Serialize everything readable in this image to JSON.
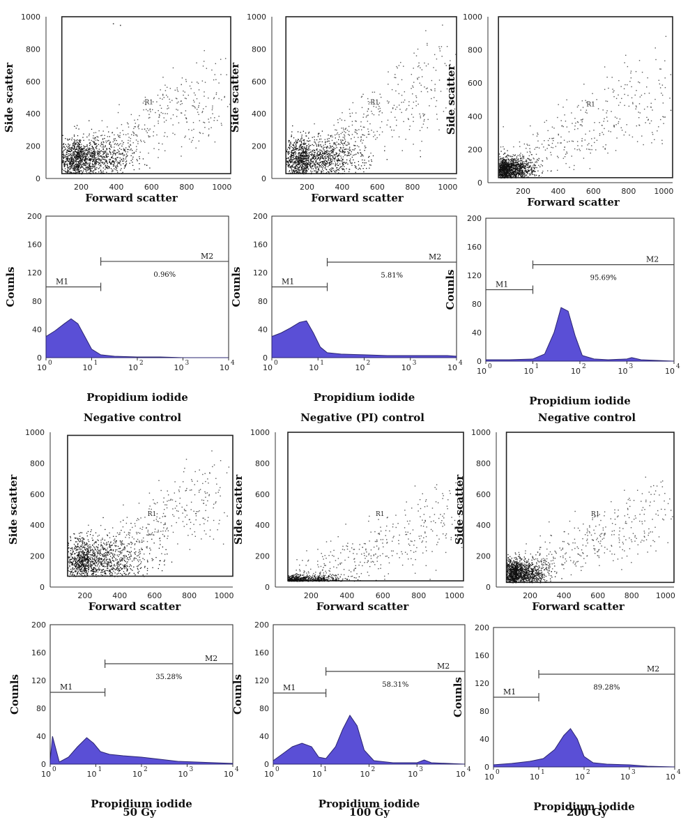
{
  "colors": {
    "histogram_fill": "#5a4fd6",
    "histogram_edge": "#2a2470",
    "dots": "#111111",
    "frame": "#222222",
    "gate": "#444444"
  },
  "conditions": [
    {
      "caption": "Negative control"
    },
    {
      "caption": "Negative (PI) control"
    },
    {
      "caption": "Negative control"
    },
    {
      "caption": "50 Gy"
    },
    {
      "caption": "100 Gy"
    },
    {
      "caption": "200 Gy"
    }
  ],
  "chart_data": [
    {
      "id": "scatter-1",
      "type": "scatter",
      "xlabel": "Forward scatter",
      "ylabel": "Side scatter",
      "xlim": [
        0,
        1050
      ],
      "ylim": [
        0,
        1000
      ],
      "xticks": [
        "200",
        "400",
        "600",
        "800",
        "1000"
      ],
      "yticks": [
        "0",
        "200",
        "400",
        "600",
        "800",
        "1000"
      ],
      "gate_label": "R1",
      "gate": {
        "x": [
          90,
          1050
        ],
        "y": [
          30,
          1000
        ]
      },
      "density": {
        "center": [
          200,
          120
        ],
        "spread": [
          140,
          90
        ],
        "tail_to": [
          1000,
          600
        ],
        "extra": [
          [
            380,
            960
          ],
          [
            420,
            950
          ]
        ]
      }
    },
    {
      "id": "scatter-2",
      "type": "scatter",
      "xlabel": "Forward scatter",
      "ylabel": "Side scatter",
      "xlim": [
        0,
        1050
      ],
      "ylim": [
        0,
        1000
      ],
      "xticks": [
        "200",
        "400",
        "600",
        "800",
        "1000"
      ],
      "yticks": [
        "0",
        "200",
        "400",
        "600",
        "800",
        "1000"
      ],
      "gate_label": "R1",
      "gate": {
        "x": [
          80,
          1050
        ],
        "y": [
          30,
          1000
        ]
      },
      "density": {
        "center": [
          200,
          120
        ],
        "spread": [
          150,
          90
        ],
        "tail_to": [
          1000,
          700
        ],
        "extra": []
      }
    },
    {
      "id": "scatter-3",
      "type": "scatter",
      "xlabel": "Forward scatter",
      "ylabel": "Side scatter",
      "xlim": [
        0,
        1050
      ],
      "ylim": [
        0,
        1000
      ],
      "xticks": [
        "200",
        "400",
        "600",
        "800",
        "1000"
      ],
      "yticks": [
        "0",
        "200",
        "400",
        "600",
        "800",
        "1000"
      ],
      "gate_label": "R1",
      "gate": {
        "x": [
          60,
          1050
        ],
        "y": [
          30,
          1000
        ]
      },
      "density": {
        "center": [
          110,
          80
        ],
        "spread": [
          70,
          50
        ],
        "tail_to": [
          1000,
          650
        ],
        "extra": []
      }
    },
    {
      "id": "hist-1",
      "type": "area",
      "xlabel": "Propidium iodide",
      "ylabel": "Counls",
      "xscale": "log",
      "xlim": [
        0,
        4
      ],
      "ylim": [
        0,
        200
      ],
      "yticks": [
        "0",
        "40",
        "80",
        "120",
        "160",
        "200"
      ],
      "markers": [
        {
          "label": "M1",
          "from": 0,
          "to": 1.2,
          "y": 100
        },
        {
          "label": "M2",
          "from": 1.2,
          "to": 4,
          "y": 136,
          "percent": "0.96%"
        }
      ],
      "x": [
        0,
        0.2,
        0.4,
        0.55,
        0.7,
        0.85,
        1.0,
        1.2,
        1.5,
        2,
        2.5,
        3,
        3.5,
        4
      ],
      "y": [
        30,
        38,
        48,
        55,
        48,
        30,
        12,
        4,
        2,
        1,
        1,
        0,
        0,
        0
      ]
    },
    {
      "id": "hist-2",
      "type": "area",
      "xlabel": "Propidium iodide",
      "ylabel": "Counls",
      "xscale": "log",
      "xlim": [
        0,
        4
      ],
      "ylim": [
        0,
        200
      ],
      "yticks": [
        "0",
        "40",
        "80",
        "120",
        "160",
        "200"
      ],
      "markers": [
        {
          "label": "M1",
          "from": 0,
          "to": 1.2,
          "y": 100
        },
        {
          "label": "M2",
          "from": 1.2,
          "to": 4,
          "y": 135,
          "percent": "5.81%"
        }
      ],
      "x": [
        0,
        0.2,
        0.4,
        0.6,
        0.75,
        0.9,
        1.05,
        1.2,
        1.5,
        2,
        2.5,
        3,
        3.5,
        3.8,
        4
      ],
      "y": [
        30,
        35,
        42,
        50,
        52,
        35,
        15,
        7,
        5,
        4,
        3,
        3,
        3,
        3,
        2
      ]
    },
    {
      "id": "hist-3",
      "type": "area",
      "xlabel": "Propidium iodide",
      "ylabel": "Counls",
      "xscale": "log",
      "xlim": [
        0,
        4
      ],
      "ylim": [
        0,
        200
      ],
      "yticks": [
        "0",
        "40",
        "80",
        "120",
        "160",
        "200"
      ],
      "markers": [
        {
          "label": "M1",
          "from": 0,
          "to": 1.0,
          "y": 100
        },
        {
          "label": "M2",
          "from": 1.0,
          "to": 4,
          "y": 135,
          "percent": "95.69%"
        }
      ],
      "x": [
        0,
        0.5,
        1.0,
        1.25,
        1.45,
        1.6,
        1.75,
        1.9,
        2.05,
        2.3,
        2.6,
        3.0,
        3.1,
        3.3,
        4
      ],
      "y": [
        2,
        2,
        3,
        10,
        40,
        75,
        70,
        35,
        8,
        3,
        2,
        3,
        5,
        2,
        0
      ]
    },
    {
      "id": "scatter-4",
      "type": "scatter",
      "xlabel": "Forward scatter",
      "ylabel": "Side scatter",
      "xlim": [
        0,
        1050
      ],
      "ylim": [
        0,
        1000
      ],
      "xticks": [
        "200",
        "400",
        "600",
        "800",
        "1000"
      ],
      "yticks": [
        "0",
        "200",
        "400",
        "600",
        "800",
        "1000"
      ],
      "gate_label": "R1",
      "gate": {
        "x": [
          100,
          1050
        ],
        "y": [
          70,
          980
        ]
      },
      "density": {
        "center": [
          220,
          160
        ],
        "spread": [
          160,
          110
        ],
        "tail_to": [
          1000,
          700
        ],
        "extra": []
      }
    },
    {
      "id": "scatter-5",
      "type": "scatter",
      "xlabel": "Forward scatter",
      "ylabel": "Side scatter",
      "xlim": [
        0,
        1050
      ],
      "ylim": [
        0,
        1000
      ],
      "xticks": [
        "200",
        "400",
        "600",
        "800",
        "1000"
      ],
      "yticks": [
        "0",
        "200",
        "400",
        "600",
        "800",
        "1000"
      ],
      "gate_label": "R1",
      "gate": {
        "x": [
          70,
          1050
        ],
        "y": [
          40,
          1000
        ]
      },
      "density": {
        "center": [
          130,
          40
        ],
        "spread": [
          120,
          25
        ],
        "tail_to": [
          1000,
          500
        ],
        "extra": []
      }
    },
    {
      "id": "scatter-6",
      "type": "scatter",
      "xlabel": "Forward scatter",
      "ylabel": "Side scatter",
      "xlim": [
        0,
        1050
      ],
      "ylim": [
        0,
        1000
      ],
      "xticks": [
        "200",
        "400",
        "600",
        "800",
        "1000"
      ],
      "yticks": [
        "0",
        "200",
        "400",
        "600",
        "800",
        "1000"
      ],
      "gate_label": "R1",
      "gate": {
        "x": [
          60,
          1050
        ],
        "y": [
          30,
          1000
        ]
      },
      "density": {
        "center": [
          120,
          90
        ],
        "spread": [
          80,
          60
        ],
        "tail_to": [
          1000,
          550
        ],
        "extra": []
      }
    },
    {
      "id": "hist-4",
      "type": "area",
      "xlabel": "Propidium iodide",
      "ylabel": "Counls",
      "xscale": "log",
      "xlim": [
        0,
        4
      ],
      "ylim": [
        0,
        200
      ],
      "yticks": [
        "0",
        "40",
        "80",
        "120",
        "160",
        "200"
      ],
      "markers": [
        {
          "label": "M1",
          "from": 0,
          "to": 1.2,
          "y": 103
        },
        {
          "label": "M2",
          "from": 1.2,
          "to": 4,
          "y": 144,
          "percent": "35.28%"
        }
      ],
      "x": [
        0,
        0.05,
        0.2,
        0.4,
        0.6,
        0.8,
        0.95,
        1.1,
        1.3,
        1.6,
        2,
        2.4,
        2.8,
        3.2,
        3.6,
        4
      ],
      "y": [
        5,
        40,
        3,
        10,
        25,
        38,
        30,
        18,
        14,
        12,
        10,
        7,
        4,
        3,
        2,
        1
      ]
    },
    {
      "id": "hist-5",
      "type": "area",
      "xlabel": "Propidium iodide",
      "ylabel": "Counls",
      "xscale": "log",
      "xlim": [
        0,
        4
      ],
      "ylim": [
        0,
        200
      ],
      "yticks": [
        "0",
        "40",
        "80",
        "120",
        "160",
        "200"
      ],
      "markers": [
        {
          "label": "M1",
          "from": 0,
          "to": 1.1,
          "y": 102
        },
        {
          "label": "M2",
          "from": 1.1,
          "to": 4,
          "y": 133,
          "percent": "58.31%"
        }
      ],
      "x": [
        0,
        0.2,
        0.4,
        0.6,
        0.8,
        0.95,
        1.1,
        1.3,
        1.45,
        1.6,
        1.75,
        1.9,
        2.1,
        2.5,
        3.0,
        3.15,
        3.3,
        4
      ],
      "y": [
        5,
        15,
        25,
        30,
        25,
        10,
        8,
        25,
        50,
        70,
        55,
        20,
        5,
        2,
        2,
        6,
        2,
        0
      ]
    },
    {
      "id": "hist-6",
      "type": "area",
      "xlabel": "Propidium iodide",
      "ylabel": "Counls",
      "xscale": "log",
      "xlim": [
        0,
        4
      ],
      "ylim": [
        0,
        200
      ],
      "yticks": [
        "0",
        "40",
        "80",
        "120",
        "160",
        "200"
      ],
      "markers": [
        {
          "label": "M1",
          "from": 0,
          "to": 1.0,
          "y": 100
        },
        {
          "label": "M2",
          "from": 1.0,
          "to": 4,
          "y": 133,
          "percent": "89.28%"
        }
      ],
      "x": [
        0,
        0.4,
        0.8,
        1.1,
        1.35,
        1.55,
        1.7,
        1.85,
        2.0,
        2.2,
        2.5,
        3.0,
        3.4,
        4
      ],
      "y": [
        3,
        5,
        8,
        12,
        25,
        45,
        55,
        40,
        15,
        6,
        4,
        3,
        1,
        0
      ]
    }
  ]
}
